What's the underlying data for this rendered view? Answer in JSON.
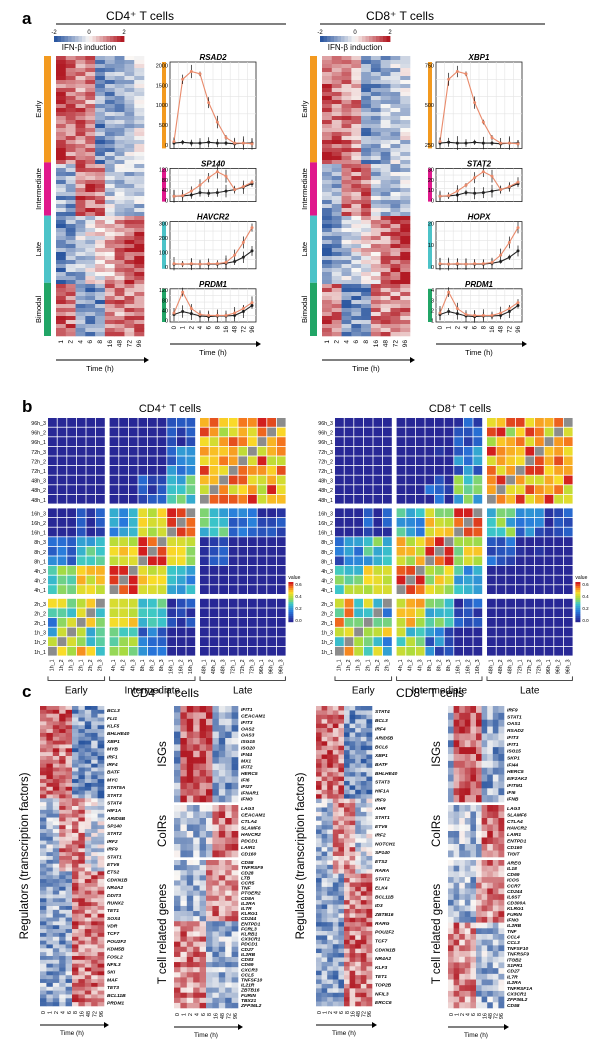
{
  "panels": {
    "a": {
      "letter": "a",
      "cd4": {
        "title": "CD4⁺ T cells",
        "legend": {
          "ticks": [
            "-2",
            "0",
            "2"
          ],
          "label": "IFN-β induction"
        },
        "groups": [
          "Early",
          "Intermediate",
          "Late",
          "Bimodal"
        ],
        "time_ticks": [
          "1",
          "2",
          "4",
          "6",
          "8",
          "16",
          "48",
          "72",
          "96"
        ],
        "xlabel": "Time (h)",
        "line_xticks": [
          "0",
          "1",
          "2",
          "4",
          "6",
          "8",
          "16",
          "48",
          "72",
          "96"
        ],
        "genes": [
          {
            "name": "RSAD2",
            "yticks": [
              "0",
              "500",
              "1000",
              "1500",
              "2000"
            ]
          },
          {
            "name": "SP140",
            "yticks": [
              "0",
              "40",
              "80",
              "120"
            ]
          },
          {
            "name": "HAVCR2",
            "yticks": [
              "0",
              "100",
              "200",
              "300"
            ]
          },
          {
            "name": "PRDM1",
            "yticks": [
              "0",
              "40",
              "80",
              "120"
            ]
          }
        ]
      },
      "cd8": {
        "title": "CD8⁺ T cells",
        "legend": {
          "ticks": [
            "-2",
            "0",
            "2"
          ],
          "label": "IFN-β induction"
        },
        "groups": [
          "Early",
          "Intermediate",
          "Late",
          "Bimodal"
        ],
        "time_ticks": [
          "1",
          "2",
          "4",
          "6",
          "8",
          "16",
          "48",
          "72",
          "96"
        ],
        "xlabel": "Time (h)",
        "line_xticks": [
          "0",
          "1",
          "2",
          "4",
          "6",
          "8",
          "16",
          "48",
          "72",
          "96"
        ],
        "genes": [
          {
            "name": "XBP1",
            "yticks": [
              "250",
              "500",
              "750"
            ]
          },
          {
            "name": "STAT2",
            "yticks": [
              "0",
              "10",
              "20",
              "30"
            ]
          },
          {
            "name": "HOPX",
            "yticks": [
              "0",
              "10",
              "20"
            ]
          },
          {
            "name": "PRDM1",
            "yticks": [
              "1",
              "2",
              "3",
              "4"
            ]
          }
        ]
      }
    },
    "b": {
      "letter": "b",
      "cd4": {
        "title": "CD4⁺ T cells"
      },
      "cd8": {
        "title": "CD8⁺ T cells"
      },
      "rows": [
        "96h_3",
        "96h_2",
        "96h_1",
        "72h_3",
        "72h_2",
        "72h_1",
        "48h_3",
        "48h_2",
        "48h_1",
        "16h_3",
        "16h_2",
        "16h_1",
        "8h_3",
        "8h_2",
        "8h_1",
        "4h_3",
        "4h_2",
        "4h_1",
        "2h_3",
        "2h_2",
        "2h_1",
        "1h_3",
        "1h_2",
        "1h_1"
      ],
      "cols": [
        "1h_1",
        "1h_2",
        "1h_3",
        "2h_1",
        "2h_2",
        "2h_3",
        "4h_1",
        "4h_2",
        "4h_3",
        "8h_1",
        "8h_2",
        "8h_3",
        "16h_1",
        "16h_2",
        "16h_3",
        "48h_1",
        "48h_2",
        "48h_3",
        "72h_1",
        "72h_2",
        "72h_3",
        "96h_1",
        "96h_2",
        "96h_3"
      ],
      "groups": [
        "Early",
        "Intermediate",
        "Late"
      ],
      "colorbar": {
        "label": "value",
        "ticks": [
          "0.6",
          "0.4",
          "0.2",
          "0.0"
        ]
      }
    },
    "c": {
      "letter": "c",
      "cd4": {
        "title": "CD4⁺ T cells",
        "regulators_label": "Regulators (transcription factors)",
        "regulators": [
          "BCL3",
          "FLI1",
          "KLF5",
          "BHLHE40",
          "XBP1",
          "MYB",
          "IRF1",
          "IRF4",
          "BATF",
          "MYC",
          "STAT5A",
          "STAT3",
          "STAT4",
          "HIF1A",
          "ARID5B",
          "SP140",
          "STAT2",
          "IRF2",
          "IRF9",
          "STAT1",
          "ETV6",
          "ETS2",
          "CDKN1B",
          "NR4A2",
          "DDIT3",
          "RUNX2",
          "TET1",
          "SOX4",
          "VDR",
          "TCF7",
          "POU2F2",
          "KDM5B",
          "FOSL2",
          "NFIL3",
          "SKI",
          "MAF",
          "TET3",
          "BCL11B",
          "PRDM1"
        ],
        "isg_label": "ISGs",
        "isgs": [
          "IFIT1",
          "CEACAM1",
          "IFIT3",
          "OAS2",
          "OAS3",
          "ISG15",
          "ISG20",
          "IFI44",
          "MX1",
          "IFIT2",
          "HERC5",
          "IFI6",
          "IFI27",
          "IFNAR1",
          "IFNG"
        ],
        "coir_label": "CoIRs",
        "coirs": [
          "LAG3",
          "CEACAM1",
          "CTLA4",
          "SLAMF6",
          "HAVCR2",
          "PDCD1",
          "LAIR1",
          "CD160"
        ],
        "tcell_label": "T cell related genes",
        "tcell": [
          "CD58",
          "TNFRSF9",
          "CD28",
          "LTB",
          "CCR5",
          "TNF",
          "PTGER2",
          "CD8A",
          "IL2RA",
          "IL7R",
          "KLRG1",
          "CD244",
          "ENTPD1",
          "FCRL3",
          "KLRB1",
          "CX3CR1",
          "PDCD1",
          "CD27",
          "IL2RB",
          "CD83",
          "CD69",
          "CXCR3",
          "CCL5",
          "TNFSF10",
          "IL21R",
          "ZBTB16",
          "FURIN",
          "TBX21",
          "ZFP36L2"
        ],
        "time_ticks": [
          "0",
          "1",
          "2",
          "4",
          "6",
          "8",
          "16",
          "48",
          "72",
          "96"
        ],
        "xlabel": "Time (h)"
      },
      "cd8": {
        "title": "CD8⁺ T cells",
        "regulators_label": "Regulators (transcription factors)",
        "regulators": [
          "STAT4",
          "BCL3",
          "IRF4",
          "ARID5B",
          "BCL6",
          "XBP1",
          "BATF",
          "BHLHE40",
          "STAT3",
          "HIF1A",
          "IRF9",
          "AHR",
          "STAT1",
          "ETV6",
          "IRF2",
          "NOTCH1",
          "SP140",
          "ETS2",
          "RARA",
          "STAT2",
          "ELK4",
          "BCL11B",
          "ID3",
          "ZBTB16",
          "RARG",
          "POU2F2",
          "TCF7",
          "CDKN1B",
          "NR4A2",
          "KLF3",
          "TET1",
          "TOP2B",
          "NFIL3",
          "ERCC6"
        ],
        "isg_label": "ISGs",
        "isgs": [
          "IRF9",
          "STAT1",
          "OAS1",
          "RSAD2",
          "IFIT3",
          "IFIT1",
          "ISG15",
          "SKP1",
          "IFI44",
          "HERC5",
          "EIF2AK2",
          "IFITM1",
          "IFI6",
          "IFNB"
        ],
        "coir_label": "CoIRs",
        "coirs": [
          "LAG3",
          "SLAMF6",
          "CTLA4",
          "HAVCR2",
          "LAIR1",
          "ENTPD1",
          "CD160",
          "TIGIT"
        ],
        "tcell_label": "T cell related genes",
        "tcell": [
          "AREG",
          "IL18",
          "CD69",
          "ICOS",
          "CCR7",
          "CD244",
          "IL6ST",
          "CD300A",
          "KLRG1",
          "FURIN",
          "IFNG",
          "IL2RB",
          "TNF",
          "CCL4",
          "CCL3",
          "TNFSF10",
          "TNFRSF9",
          "ITGB2",
          "S1PR1",
          "CD27",
          "IL7R",
          "IL2RA",
          "TNFRSF1A",
          "CX3CR1",
          "ZFP36L2",
          "CD58"
        ],
        "time_ticks": [
          "0",
          "1",
          "2",
          "4",
          "6",
          "8",
          "16",
          "48",
          "72",
          "96"
        ],
        "xlabel": "Time (h)"
      }
    }
  }
}
